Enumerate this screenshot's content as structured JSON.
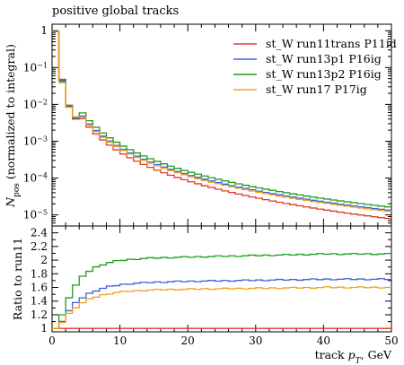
{
  "chart_data": [
    {
      "type": "line",
      "panel": "main",
      "title": "positive global tracks",
      "ylabel": "N_pos (normalized to integral)",
      "ylabel_main": "N",
      "ylabel_sub": "pos",
      "ylabel_rest": " (normalized to integral)",
      "yscale": "log",
      "xlim": [
        0,
        50
      ],
      "ylim": [
        5e-06,
        1.5
      ],
      "yticks": [
        {
          "value": 1,
          "label": "1",
          "base": "1",
          "exp": ""
        },
        {
          "value": 0.1,
          "label": "10^-1",
          "base": "10",
          "exp": "−1"
        },
        {
          "value": 0.01,
          "label": "10^-2",
          "base": "10",
          "exp": "−2"
        },
        {
          "value": 0.001,
          "label": "10^-3",
          "base": "10",
          "exp": "−3"
        },
        {
          "value": 0.0001,
          "label": "10^-4",
          "base": "10",
          "exp": "−4"
        },
        {
          "value": 1e-05,
          "label": "10^-5",
          "base": "10",
          "exp": "−5"
        }
      ],
      "legend": "top-right",
      "series": [
        {
          "name": "st_W run11trans P11id",
          "color": "#e03b2b",
          "norm": 8e-06
        },
        {
          "name": "st_W run13p1 P16ig",
          "color": "#3a5ee6",
          "norm": 1.35e-05
        },
        {
          "name": "st_W run13p2 P16ig",
          "color": "#1f9e1f",
          "norm": 1.65e-05
        },
        {
          "name": "st_W run17 P17ig",
          "color": "#f0a020",
          "norm": 1.25e-05
        }
      ]
    },
    {
      "type": "line",
      "panel": "ratio",
      "ylabel": "Ratio to run11",
      "xlabel": "track p_T, GeV",
      "xlabel_pre": "track ",
      "xlabel_var": "p",
      "xlabel_sub": "T",
      "xlabel_post": ", GeV",
      "xlim": [
        0,
        50
      ],
      "ylim": [
        0.95,
        2.5
      ],
      "xticks": [
        0,
        10,
        20,
        30,
        40,
        50
      ],
      "yticks": [
        1,
        1.2,
        1.4,
        1.6,
        1.8,
        2,
        2.2,
        2.4
      ],
      "series": [
        {
          "name": "st_W run11trans P11id",
          "color": "#e03b2b",
          "plateau": 1.0
        },
        {
          "name": "st_W run13p1 P16ig",
          "color": "#3a5ee6",
          "plateau": 1.72
        },
        {
          "name": "st_W run13p2 P16ig",
          "color": "#1f9e1f",
          "plateau": 2.09
        },
        {
          "name": "st_W run17 P17ig",
          "color": "#f0a020",
          "plateau": 1.6
        }
      ]
    }
  ]
}
